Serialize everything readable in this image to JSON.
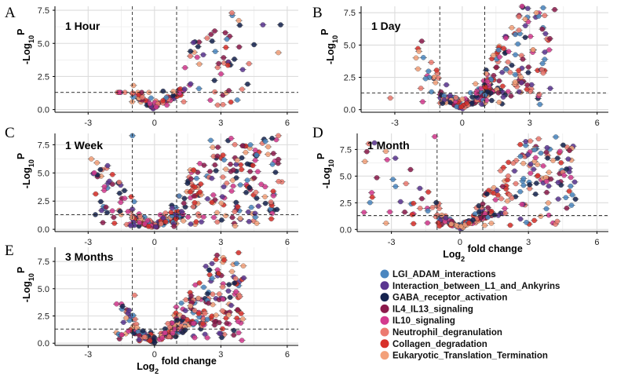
{
  "legend": [
    {
      "label": "LGI_ADAM_interactions",
      "color": "#4a86c0"
    },
    {
      "label": "Interaction_between_L1_and_Ankyrins",
      "color": "#5a3590"
    },
    {
      "label": "GABA_receptor_activation",
      "color": "#15234f"
    },
    {
      "label": "IL4_IL13_signaling",
      "color": "#8b1a4b"
    },
    {
      "label": "IL10_signaling",
      "color": "#d43a8e"
    },
    {
      "label": "Neutrophil_degranulation",
      "color": "#ec7a70"
    },
    {
      "label": "Collagen_degradation",
      "color": "#d8302a"
    },
    {
      "label": "Eukaryotic_Translation_Termination",
      "color": "#f3a079"
    }
  ],
  "axes": {
    "xlabel_base": "Log",
    "xlabel_sub": "2",
    "xlabel_rest": " fold change",
    "ylabel_prefix": "-Log",
    "ylabel_sub": "10",
    "ylabel_suffix": "P",
    "xticks": [
      "-3",
      "0",
      "3",
      "6"
    ],
    "yticks": [
      "0.0",
      "2.5",
      "5.0",
      "7.5"
    ],
    "x_thresholds": [
      -1,
      1
    ],
    "y_threshold": 1.3
  },
  "chart_data": [
    {
      "type": "scatter",
      "letter": "A",
      "title": "1 Hour",
      "xlim": [
        -4.5,
        6.5
      ],
      "ylim": [
        -0.2,
        7.8
      ],
      "show_xlabel": false,
      "points_summary": "~140 genes, mostly log2FC -1..4, max -log10P ~7.3 at log2FC ~3.5"
    },
    {
      "type": "scatter",
      "letter": "B",
      "title": "1 Day",
      "xlim": [
        -4.5,
        6.5
      ],
      "ylim": [
        -0.2,
        8.0
      ],
      "show_xlabel": false,
      "points_summary": "~300 genes, strong up-regulation log2FC 0.5..3.5, max -log10P ~8.0"
    },
    {
      "type": "scatter",
      "letter": "C",
      "title": "1 Week",
      "xlim": [
        -4.5,
        6.5
      ],
      "ylim": [
        -0.2,
        8.5
      ],
      "show_xlabel": false,
      "points_summary": "~380 genes, down-regulated -2.7..-1 and up 1..5.6, max -log10P ~8.4"
    },
    {
      "type": "scatter",
      "letter": "D",
      "title": "1 Month",
      "xlim": [
        -4.5,
        6.5
      ],
      "ylim": [
        -0.2,
        9.0
      ],
      "show_xlabel": true,
      "points_summary": "~300 genes, down to -4.2, up to 4.8, max -log10P ~8.7"
    },
    {
      "type": "scatter",
      "letter": "E",
      "title": "3 Months",
      "xlim": [
        -4.5,
        6.5
      ],
      "ylim": [
        -0.2,
        8.8
      ],
      "show_xlabel": true,
      "points_summary": "~330 genes, up-regulated to ~4, max -log10P ~8.3"
    }
  ]
}
